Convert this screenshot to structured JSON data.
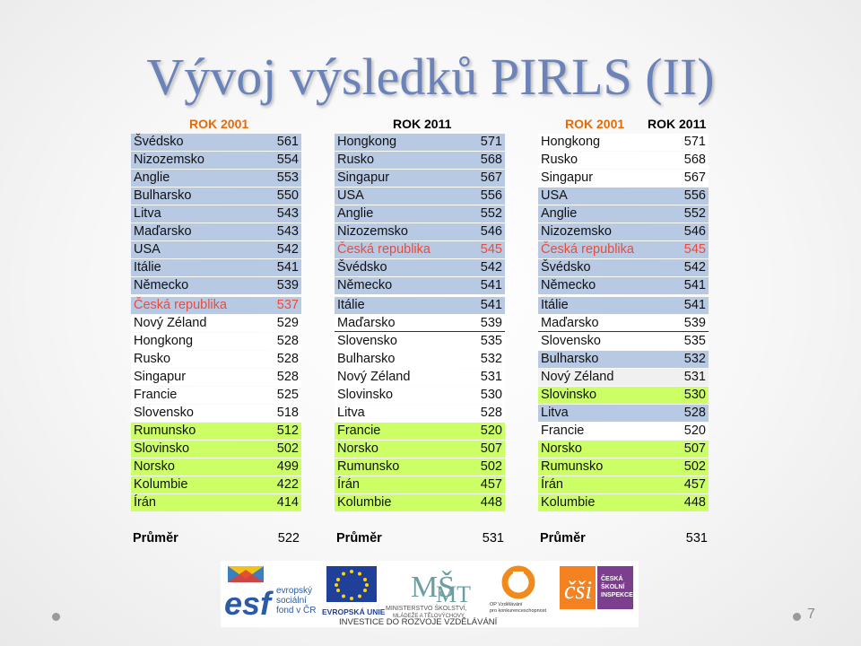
{
  "title": "Vývoj výsledků PIRLS (II)",
  "left": {
    "header": "ROK 2001",
    "rows": [
      [
        "Švédsko",
        "561"
      ],
      [
        "Nizozemsko",
        "554"
      ],
      [
        "Anglie",
        "553"
      ],
      [
        "Bulharsko",
        "550"
      ],
      [
        "Litva",
        "543"
      ],
      [
        "Maďarsko",
        "543"
      ],
      [
        "USA",
        "542"
      ],
      [
        "Itálie",
        "541"
      ],
      [
        "Německo",
        "539"
      ],
      [
        "Česká republika",
        "537"
      ],
      [
        "Nový Zéland",
        "529"
      ],
      [
        "Hongkong",
        "528"
      ],
      [
        "Rusko",
        "528"
      ],
      [
        "Singapur",
        "528"
      ],
      [
        "Francie",
        "525"
      ],
      [
        "Slovensko",
        "518"
      ],
      [
        "Rumunsko",
        "512"
      ],
      [
        "Slovinsko",
        "502"
      ],
      [
        "Norsko",
        "499"
      ],
      [
        "Kolumbie",
        "422"
      ],
      [
        "Írán",
        "414"
      ]
    ],
    "avg_label": "Průměr",
    "avg_value": "522"
  },
  "middle": {
    "header": "ROK 2011",
    "rows": [
      [
        "Hongkong",
        "571"
      ],
      [
        "Rusko",
        "568"
      ],
      [
        "Singapur",
        "567"
      ],
      [
        "USA",
        "556"
      ],
      [
        "Anglie",
        "552"
      ],
      [
        "Nizozemsko",
        "546"
      ],
      [
        "Česká republika",
        "545"
      ],
      [
        "Švédsko",
        "542"
      ],
      [
        "Německo",
        "541"
      ],
      [
        "Itálie",
        "541"
      ],
      [
        "Maďarsko",
        "539"
      ],
      [
        "Slovensko",
        "535"
      ],
      [
        "Bulharsko",
        "532"
      ],
      [
        "Nový Zéland",
        "531"
      ],
      [
        "Slovinsko",
        "530"
      ],
      [
        "Litva",
        "528"
      ],
      [
        "Francie",
        "520"
      ],
      [
        "Norsko",
        "507"
      ],
      [
        "Rumunsko",
        "502"
      ],
      [
        "Írán",
        "457"
      ],
      [
        "Kolumbie",
        "448"
      ]
    ],
    "avg_label": "Průměr",
    "avg_value": "531"
  },
  "right": {
    "header_2001": "ROK 2001",
    "header_2011": "ROK 2011",
    "rows": [
      [
        "Hongkong",
        "571"
      ],
      [
        "Rusko",
        "568"
      ],
      [
        "Singapur",
        "567"
      ],
      [
        "USA",
        "556"
      ],
      [
        "Anglie",
        "552"
      ],
      [
        "Nizozemsko",
        "546"
      ],
      [
        "Česká republika",
        "545"
      ],
      [
        "Švédsko",
        "542"
      ],
      [
        "Německo",
        "541"
      ],
      [
        "Itálie",
        "541"
      ],
      [
        "Maďarsko",
        "539"
      ],
      [
        "Slovensko",
        "535"
      ],
      [
        "Bulharsko",
        "532"
      ],
      [
        "Nový Zéland",
        "531"
      ],
      [
        "Slovinsko",
        "530"
      ],
      [
        "Litva",
        "528"
      ],
      [
        "Francie",
        "520"
      ],
      [
        "Norsko",
        "507"
      ],
      [
        "Rumunsko",
        "502"
      ],
      [
        "Írán",
        "457"
      ],
      [
        "Kolumbie",
        "448"
      ]
    ],
    "avg_label": "Průměr",
    "avg_value": "531"
  },
  "logos": {
    "esf_big": "esf",
    "esf_text": "evropský\nsociální\nfond v ČR",
    "eu_text": "EVROPSKÁ UNIE",
    "msmt_text": "MINISTERSTVO ŠKOLSTVÍ,\nMLÁDEŽE A TĚLOVÝCHOVY",
    "op_text": "OP Vzdělávání\npro konkurenceschopnost",
    "csi_text": "ČESKÁ\nŠKOLNÍ\nINSPEKCE",
    "slogan": "INVESTICE DO ROZVOJE VZDĚLÁVÁNÍ"
  },
  "page_number": "7"
}
